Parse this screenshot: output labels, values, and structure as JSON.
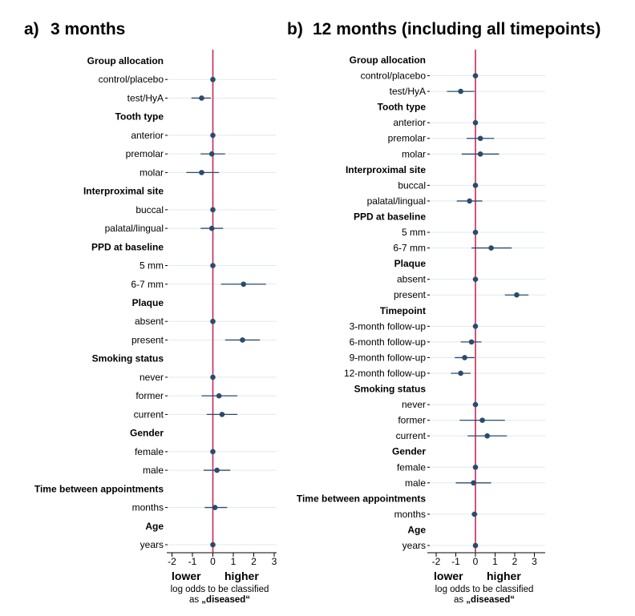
{
  "panels": [
    {
      "letter": "a)",
      "title": "3 months",
      "direction_left": "lower",
      "direction_right": "higher",
      "xlabel_line1": "log odds to be classified",
      "xlabel_line2_prefix": "as ",
      "xlabel_line2_bold": "„diseased“"
    },
    {
      "letter": "b)",
      "title": "12 months (including all timepoints)",
      "direction_left": "lower",
      "direction_right": "higher",
      "xlabel_line1": "log odds to be classified",
      "xlabel_line2_prefix": "as ",
      "xlabel_line2_bold": "„diseased“"
    }
  ],
  "chart_data": [
    {
      "type": "scatter",
      "subtype": "forest-plot",
      "title": "3 months",
      "xlabel": "log odds to be classified as „diseased“",
      "xlim": [
        -2,
        3
      ],
      "xticks": [
        -2,
        -1,
        0,
        1,
        2,
        3
      ],
      "reference_line": 0,
      "reference_color": "#c8285a",
      "point_color": "#2a4b6e",
      "grid": true,
      "rows": [
        {
          "kind": "header",
          "label": "Group allocation"
        },
        {
          "kind": "item",
          "label": "control/placebo",
          "estimate": 0.0,
          "ci": null
        },
        {
          "kind": "item",
          "label": "test/HyA",
          "estimate": -0.55,
          "ci": [
            -1.05,
            -0.1
          ]
        },
        {
          "kind": "header",
          "label": "Tooth type"
        },
        {
          "kind": "item",
          "label": "anterior",
          "estimate": 0.0,
          "ci": null
        },
        {
          "kind": "item",
          "label": "premolar",
          "estimate": -0.05,
          "ci": [
            -0.6,
            0.6
          ]
        },
        {
          "kind": "item",
          "label": "molar",
          "estimate": -0.55,
          "ci": [
            -1.3,
            0.3
          ]
        },
        {
          "kind": "header",
          "label": "Interproximal site"
        },
        {
          "kind": "item",
          "label": "buccal",
          "estimate": 0.0,
          "ci": null
        },
        {
          "kind": "item",
          "label": "palatal/lingual",
          "estimate": -0.05,
          "ci": [
            -0.6,
            0.5
          ]
        },
        {
          "kind": "header",
          "label": "PPD at baseline"
        },
        {
          "kind": "item",
          "label": "5 mm",
          "estimate": 0.0,
          "ci": null
        },
        {
          "kind": "item",
          "label": "6-7 mm",
          "estimate": 1.5,
          "ci": [
            0.4,
            2.6
          ]
        },
        {
          "kind": "header",
          "label": "Plaque"
        },
        {
          "kind": "item",
          "label": "absent",
          "estimate": 0.0,
          "ci": null
        },
        {
          "kind": "item",
          "label": "present",
          "estimate": 1.45,
          "ci": [
            0.6,
            2.3
          ]
        },
        {
          "kind": "header",
          "label": "Smoking status"
        },
        {
          "kind": "item",
          "label": "never",
          "estimate": 0.0,
          "ci": null
        },
        {
          "kind": "item",
          "label": "former",
          "estimate": 0.3,
          "ci": [
            -0.55,
            1.2
          ]
        },
        {
          "kind": "item",
          "label": "current",
          "estimate": 0.45,
          "ci": [
            -0.3,
            1.2
          ]
        },
        {
          "kind": "header",
          "label": "Gender"
        },
        {
          "kind": "item",
          "label": "female",
          "estimate": 0.0,
          "ci": null
        },
        {
          "kind": "item",
          "label": "male",
          "estimate": 0.2,
          "ci": [
            -0.45,
            0.85
          ]
        },
        {
          "kind": "header",
          "label": "Time between appointments"
        },
        {
          "kind": "item",
          "label": "months",
          "estimate": 0.1,
          "ci": [
            -0.4,
            0.7
          ]
        },
        {
          "kind": "header",
          "label": "Age"
        },
        {
          "kind": "item",
          "label": "years",
          "estimate": 0.0,
          "ci": null
        }
      ]
    },
    {
      "type": "scatter",
      "subtype": "forest-plot",
      "title": "12 months (including all timepoints)",
      "xlabel": "log odds to be classified as „diseased“",
      "xlim": [
        -2,
        3
      ],
      "xticks": [
        -2,
        -1,
        0,
        1,
        2,
        3
      ],
      "reference_line": 0,
      "reference_color": "#c8285a",
      "point_color": "#2a4b6e",
      "grid": true,
      "rows": [
        {
          "kind": "header",
          "label": "Group allocation"
        },
        {
          "kind": "item",
          "label": "control/placebo",
          "estimate": 0.0,
          "ci": null
        },
        {
          "kind": "item",
          "label": "test/HyA",
          "estimate": -0.75,
          "ci": [
            -1.45,
            -0.05
          ]
        },
        {
          "kind": "header",
          "label": "Tooth type"
        },
        {
          "kind": "item",
          "label": "anterior",
          "estimate": 0.0,
          "ci": null
        },
        {
          "kind": "item",
          "label": "premolar",
          "estimate": 0.25,
          "ci": [
            -0.45,
            0.95
          ]
        },
        {
          "kind": "item",
          "label": "molar",
          "estimate": 0.25,
          "ci": [
            -0.7,
            1.2
          ]
        },
        {
          "kind": "header",
          "label": "Interproximal site"
        },
        {
          "kind": "item",
          "label": "buccal",
          "estimate": 0.0,
          "ci": null
        },
        {
          "kind": "item",
          "label": "palatal/lingual",
          "estimate": -0.3,
          "ci": [
            -0.95,
            0.35
          ]
        },
        {
          "kind": "header",
          "label": "PPD at baseline"
        },
        {
          "kind": "item",
          "label": "5 mm",
          "estimate": 0.0,
          "ci": null
        },
        {
          "kind": "item",
          "label": "6-7 mm",
          "estimate": 0.8,
          "ci": [
            -0.2,
            1.85
          ]
        },
        {
          "kind": "header",
          "label": "Plaque"
        },
        {
          "kind": "item",
          "label": "absent",
          "estimate": 0.0,
          "ci": null
        },
        {
          "kind": "item",
          "label": "present",
          "estimate": 2.1,
          "ci": [
            1.5,
            2.7
          ]
        },
        {
          "kind": "header",
          "label": "Timepoint"
        },
        {
          "kind": "item",
          "label": "3-month follow-up",
          "estimate": 0.0,
          "ci": null
        },
        {
          "kind": "item",
          "label": "6-month follow-up",
          "estimate": -0.2,
          "ci": [
            -0.75,
            0.3
          ]
        },
        {
          "kind": "item",
          "label": "9-month follow-up",
          "estimate": -0.55,
          "ci": [
            -1.05,
            -0.05
          ]
        },
        {
          "kind": "item",
          "label": "12-month follow-up",
          "estimate": -0.75,
          "ci": [
            -1.25,
            -0.25
          ]
        },
        {
          "kind": "header",
          "label": "Smoking status"
        },
        {
          "kind": "item",
          "label": "never",
          "estimate": 0.0,
          "ci": null
        },
        {
          "kind": "item",
          "label": "former",
          "estimate": 0.35,
          "ci": [
            -0.8,
            1.5
          ]
        },
        {
          "kind": "item",
          "label": "current",
          "estimate": 0.6,
          "ci": [
            -0.4,
            1.6
          ]
        },
        {
          "kind": "header",
          "label": "Gender"
        },
        {
          "kind": "item",
          "label": "female",
          "estimate": 0.0,
          "ci": null
        },
        {
          "kind": "item",
          "label": "male",
          "estimate": -0.1,
          "ci": [
            -1.0,
            0.8
          ]
        },
        {
          "kind": "header",
          "label": "Time between appointments"
        },
        {
          "kind": "item",
          "label": "months",
          "estimate": -0.05,
          "ci": [
            -0.2,
            0.1
          ]
        },
        {
          "kind": "header",
          "label": "Age"
        },
        {
          "kind": "item",
          "label": "years",
          "estimate": 0.0,
          "ci": null
        }
      ]
    }
  ]
}
